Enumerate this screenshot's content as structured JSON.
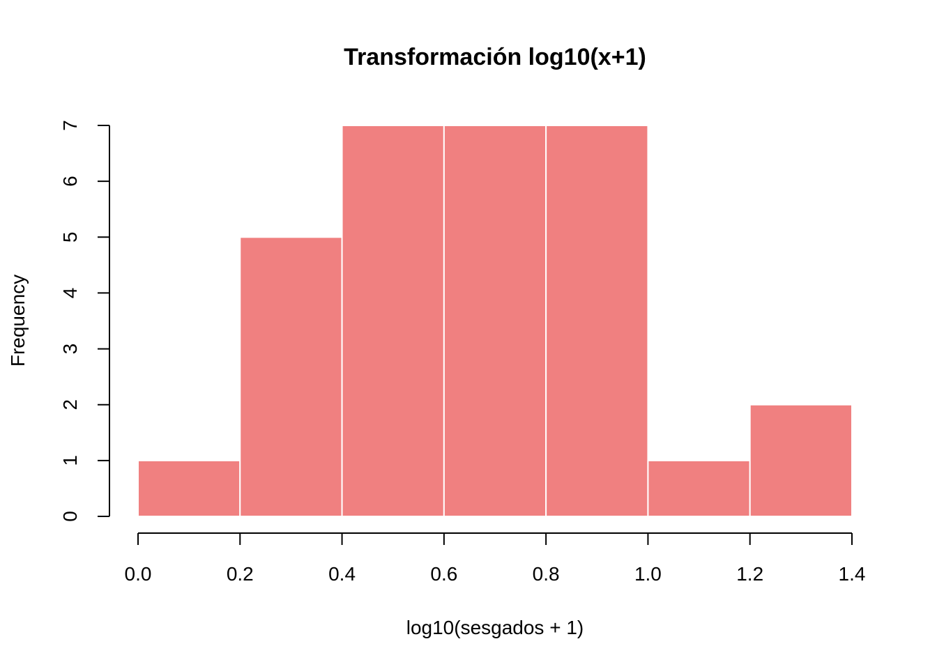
{
  "chart_data": {
    "type": "bar",
    "title": "Transformación log10(x+1)",
    "xlabel": "log10(sesgados + 1)",
    "ylabel": "Frequency",
    "bin_edges": [
      0.0,
      0.2,
      0.4,
      0.6,
      0.8,
      1.0,
      1.2,
      1.4
    ],
    "values": [
      1,
      5,
      7,
      7,
      7,
      1,
      2
    ],
    "xlim": [
      0.0,
      1.4
    ],
    "ylim": [
      0,
      7
    ],
    "x_ticks": [
      "0.0",
      "0.2",
      "0.4",
      "0.6",
      "0.8",
      "1.0",
      "1.2",
      "1.4"
    ],
    "y_ticks": [
      "0",
      "1",
      "2",
      "3",
      "4",
      "5",
      "6",
      "7"
    ],
    "bar_color": "#F08080",
    "grid": false
  }
}
